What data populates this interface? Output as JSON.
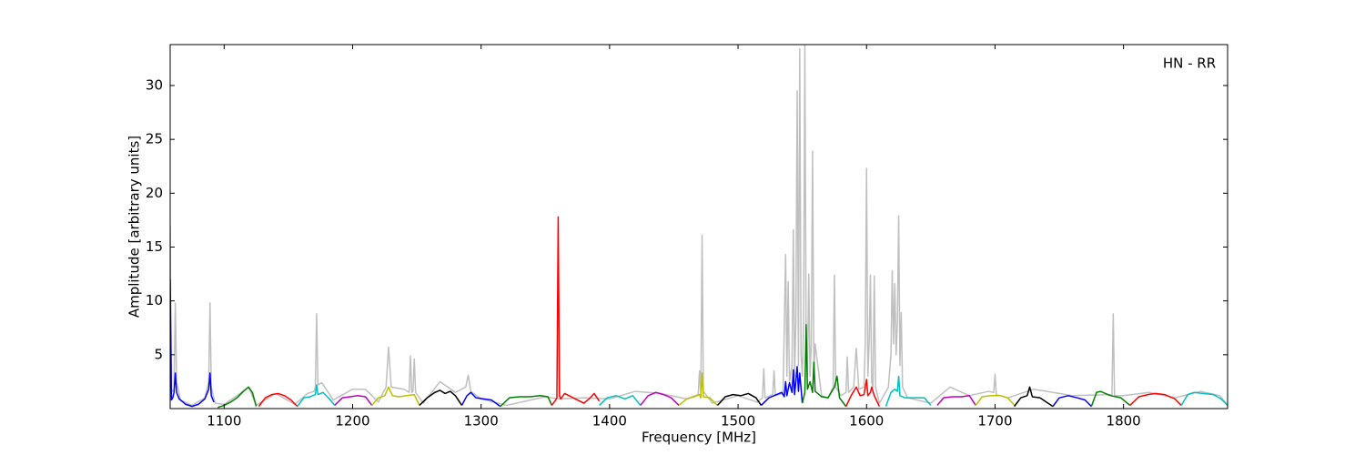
{
  "chart_data": {
    "type": "line",
    "annotation": "HN - RR",
    "x_label": "Frequency [MHz]",
    "y_label": "Amplitude [arbitrary units]",
    "xlim": [
      1058,
      1881
    ],
    "ylim": [
      0,
      33.8
    ],
    "xticks": [
      1100,
      1200,
      1300,
      1400,
      1500,
      1600,
      1700,
      1800
    ],
    "yticks": [
      5,
      10,
      15,
      20,
      25,
      30
    ],
    "series": [
      {
        "color": "#bfbfbf",
        "x": [
          1058,
          1059,
          1061,
          1062,
          1063,
          1066,
          1075,
          1085,
          1088,
          1089,
          1090,
          1093,
          1100,
          1110,
          1119,
          1125,
          1140,
          1155,
          1165,
          1170,
          1171,
          1172,
          1173,
          1176,
          1185,
          1200,
          1210,
          1220,
          1226,
          1228,
          1230,
          1240,
          1244,
          1245,
          1246,
          1247,
          1248,
          1249,
          1255,
          1268,
          1280,
          1288,
          1290,
          1292,
          1300,
          1320,
          1350,
          1360,
          1380,
          1400,
          1420,
          1440,
          1460,
          1469,
          1470,
          1471,
          1472,
          1473,
          1480,
          1500,
          1515,
          1519,
          1520,
          1521,
          1527,
          1528,
          1529,
          1535,
          1537,
          1538,
          1539,
          1540,
          1542,
          1543,
          1544,
          1545,
          1546,
          1547,
          1548,
          1549,
          1550,
          1551,
          1552,
          1553,
          1554,
          1555,
          1556,
          1557,
          1558,
          1559,
          1560,
          1565,
          1570,
          1574,
          1575,
          1576,
          1580,
          1584,
          1585,
          1586,
          1590,
          1592,
          1594,
          1598,
          1599,
          1600,
          1601,
          1602,
          1603,
          1604,
          1605,
          1606,
          1607,
          1610,
          1617,
          1619,
          1620,
          1621,
          1622,
          1623,
          1624,
          1625,
          1626,
          1627,
          1628,
          1632,
          1650,
          1665,
          1680,
          1695,
          1699,
          1700,
          1701,
          1710,
          1730,
          1760,
          1790,
          1791,
          1792,
          1793,
          1800,
          1820,
          1840,
          1860,
          1875,
          1881
        ],
        "values": [
          17,
          1.5,
          1.8,
          9.8,
          2.5,
          0.8,
          0.3,
          1.0,
          2.5,
          9.8,
          2.0,
          0.5,
          0.4,
          1.2,
          2.0,
          0.3,
          1.4,
          0.4,
          1.4,
          1.6,
          2.0,
          8.8,
          2.2,
          2.4,
          0.8,
          1.8,
          1.8,
          0.6,
          2.0,
          5.7,
          2.0,
          1.8,
          1.5,
          4.9,
          1.5,
          1.6,
          4.6,
          1.5,
          0.5,
          2.5,
          1.5,
          2.0,
          3.1,
          1.6,
          0.9,
          0.3,
          1.1,
          0.9,
          1.0,
          0.9,
          1.6,
          1.4,
          0.9,
          1.3,
          3.5,
          1.3,
          16.1,
          1.6,
          0.5,
          1.2,
          0.6,
          1.0,
          3.7,
          1.0,
          1.3,
          3.5,
          1.2,
          1.4,
          14.3,
          3.0,
          11.8,
          2.5,
          4.0,
          16.6,
          3.0,
          8.0,
          29.5,
          4.0,
          33.4,
          5.0,
          3.0,
          8.0,
          33.8,
          5.0,
          3.0,
          12.5,
          3.0,
          6.0,
          23.9,
          3.0,
          6.0,
          1.2,
          1.0,
          2.0,
          12.4,
          2.0,
          1.2,
          1.5,
          4.8,
          1.5,
          2.0,
          5.6,
          1.8,
          2.0,
          6.0,
          22.3,
          3.0,
          6.0,
          12.4,
          2.5,
          2.0,
          12.3,
          2.0,
          0.5,
          2.0,
          5.0,
          12.8,
          6.0,
          11.6,
          5.0,
          8.0,
          17.9,
          4.0,
          8.9,
          2.0,
          1.0,
          0.5,
          2.0,
          1.2,
          1.6,
          1.5,
          3.2,
          1.3,
          1.0,
          1.8,
          1.2,
          1.3,
          1.2,
          8.8,
          1.2,
          1.2,
          1.5,
          1.0,
          1.6,
          1.2,
          0.3
        ]
      },
      {
        "color": "#0000ff",
        "x": [
          1058,
          1059,
          1060,
          1061,
          1062,
          1063,
          1065,
          1070,
          1075,
          1080,
          1085,
          1088,
          1089,
          1090,
          1092
        ],
        "values": [
          12,
          0.8,
          1.0,
          1.5,
          3.3,
          1.5,
          0.9,
          0.4,
          0.2,
          0.4,
          0.9,
          1.8,
          3.3,
          1.2,
          0.6
        ]
      },
      {
        "color": "#008000",
        "x": [
          1095,
          1100,
          1105,
          1110,
          1115,
          1119,
          1122,
          1125
        ],
        "values": [
          0.1,
          0.3,
          0.6,
          1.0,
          1.6,
          2.0,
          1.5,
          0.2
        ]
      },
      {
        "color": "#ff0000",
        "x": [
          1127,
          1132,
          1137,
          1142,
          1147,
          1152,
          1157
        ],
        "values": [
          0.2,
          1.0,
          1.3,
          1.4,
          1.2,
          0.8,
          0.2
        ]
      },
      {
        "color": "#00bfbf",
        "x": [
          1157,
          1162,
          1167,
          1171,
          1172,
          1173,
          1177,
          1182,
          1186
        ],
        "values": [
          0.2,
          1.0,
          1.1,
          1.3,
          2.2,
          1.3,
          1.5,
          0.9,
          0.3
        ]
      },
      {
        "color": "#bf00bf",
        "x": [
          1186,
          1192,
          1198,
          1204,
          1210,
          1215
        ],
        "values": [
          0.3,
          1.0,
          1.1,
          1.2,
          1.1,
          0.3
        ]
      },
      {
        "color": "#bfbf00",
        "x": [
          1215,
          1220,
          1225,
          1228,
          1231,
          1236,
          1242,
          1248,
          1252
        ],
        "values": [
          0.3,
          1.0,
          1.2,
          2.0,
          1.2,
          1.1,
          1.2,
          1.3,
          0.3
        ]
      },
      {
        "color": "#000000",
        "x": [
          1252,
          1258,
          1264,
          1268,
          1272,
          1276,
          1280,
          1285
        ],
        "values": [
          0.3,
          1.0,
          1.5,
          1.7,
          1.4,
          1.6,
          1.2,
          0.3
        ]
      },
      {
        "color": "#0000ff",
        "x": [
          1285,
          1289,
          1292,
          1296,
          1302,
          1308,
          1315
        ],
        "values": [
          0.3,
          1.2,
          1.5,
          1.0,
          0.9,
          0.8,
          0.2
        ]
      },
      {
        "color": "#008000",
        "x": [
          1315,
          1322,
          1330,
          1338,
          1346,
          1352,
          1355
        ],
        "values": [
          0.2,
          1.0,
          1.1,
          1.1,
          1.2,
          1.1,
          0.3
        ]
      },
      {
        "color": "#ff0000",
        "x": [
          1355,
          1358,
          1359,
          1360,
          1361,
          1362,
          1365,
          1370,
          1375,
          1380,
          1385,
          1388,
          1392
        ],
        "values": [
          0.3,
          0.8,
          1.0,
          17.8,
          1.2,
          0.9,
          1.4,
          1.1,
          0.8,
          0.5,
          1.0,
          1.4,
          0.7
        ]
      },
      {
        "color": "#00bfbf",
        "x": [
          1392,
          1398,
          1405,
          1412,
          1418,
          1424
        ],
        "values": [
          0.3,
          1.0,
          1.2,
          0.9,
          1.2,
          0.3
        ]
      },
      {
        "color": "#bf00bf",
        "x": [
          1424,
          1430,
          1436,
          1442,
          1448,
          1454
        ],
        "values": [
          0.3,
          1.2,
          1.5,
          1.3,
          1.0,
          0.3
        ]
      },
      {
        "color": "#bfbf00",
        "x": [
          1454,
          1460,
          1466,
          1470,
          1471,
          1472,
          1473,
          1478,
          1484
        ],
        "values": [
          0.3,
          0.9,
          1.1,
          1.3,
          1.0,
          3.3,
          1.1,
          1.0,
          0.3
        ]
      },
      {
        "color": "#000000",
        "x": [
          1484,
          1490,
          1496,
          1502,
          1508,
          1514,
          1518
        ],
        "values": [
          0.3,
          1.1,
          1.3,
          1.2,
          1.4,
          1.0,
          0.3
        ]
      },
      {
        "color": "#0000ff",
        "x": [
          1518,
          1524,
          1530,
          1534,
          1536,
          1537,
          1538,
          1540,
          1542,
          1543,
          1544,
          1546,
          1547,
          1548,
          1550
        ],
        "values": [
          0.3,
          1.0,
          1.3,
          1.5,
          1.1,
          2.5,
          1.2,
          2.4,
          1.5,
          3.6,
          1.3,
          3.9,
          1.6,
          3.3,
          0.5
        ]
      },
      {
        "color": "#008000",
        "x": [
          1550,
          1552,
          1553,
          1554,
          1556,
          1558,
          1559,
          1560,
          1565,
          1570,
          1575,
          1577,
          1579,
          1584
        ],
        "values": [
          0.5,
          1.5,
          7.8,
          1.8,
          2.5,
          1.5,
          4.3,
          1.6,
          1.1,
          1.0,
          2.0,
          3.0,
          1.0,
          0.2
        ]
      },
      {
        "color": "#ff0000",
        "x": [
          1584,
          1588,
          1592,
          1595,
          1598,
          1600,
          1601,
          1603,
          1604,
          1606,
          1610
        ],
        "values": [
          0.2,
          1.2,
          2.0,
          1.2,
          1.3,
          2.7,
          1.2,
          1.5,
          2.0,
          1.2,
          0.2
        ]
      },
      {
        "color": "#00bfbf",
        "x": [
          1615,
          1619,
          1622,
          1624,
          1625,
          1626,
          1630,
          1638,
          1645,
          1650
        ],
        "values": [
          0.2,
          1.5,
          1.8,
          1.6,
          3.0,
          1.2,
          1.0,
          1.0,
          1.0,
          0.3
        ]
      },
      {
        "color": "#bf00bf",
        "x": [
          1655,
          1660,
          1667,
          1674,
          1680,
          1685
        ],
        "values": [
          0.3,
          1.0,
          1.1,
          1.1,
          1.2,
          0.3
        ]
      },
      {
        "color": "#bfbf00",
        "x": [
          1685,
          1690,
          1697,
          1704,
          1710,
          1715
        ],
        "values": [
          0.3,
          1.1,
          1.2,
          1.2,
          1.0,
          0.3
        ]
      },
      {
        "color": "#000000",
        "x": [
          1715,
          1720,
          1725,
          1727,
          1729,
          1735,
          1745
        ],
        "values": [
          0.2,
          1.0,
          1.2,
          2.0,
          1.1,
          1.0,
          0.2
        ]
      },
      {
        "color": "#0000ff",
        "x": [
          1745,
          1750,
          1757,
          1764,
          1770,
          1775
        ],
        "values": [
          0.2,
          1.0,
          1.2,
          1.0,
          0.8,
          0.2
        ]
      },
      {
        "color": "#008000",
        "x": [
          1775,
          1779,
          1782,
          1790,
          1798,
          1805
        ],
        "values": [
          0.2,
          1.5,
          1.6,
          1.2,
          1.0,
          0.3
        ]
      },
      {
        "color": "#ff0000",
        "x": [
          1805,
          1812,
          1819,
          1825,
          1832,
          1840,
          1845
        ],
        "values": [
          0.3,
          1.1,
          1.3,
          1.4,
          1.3,
          0.9,
          0.3
        ]
      },
      {
        "color": "#00bfbf",
        "x": [
          1845,
          1850,
          1855,
          1862,
          1870,
          1876,
          1881
        ],
        "values": [
          0.3,
          1.3,
          1.5,
          1.4,
          1.3,
          0.9,
          0.3
        ]
      }
    ]
  }
}
